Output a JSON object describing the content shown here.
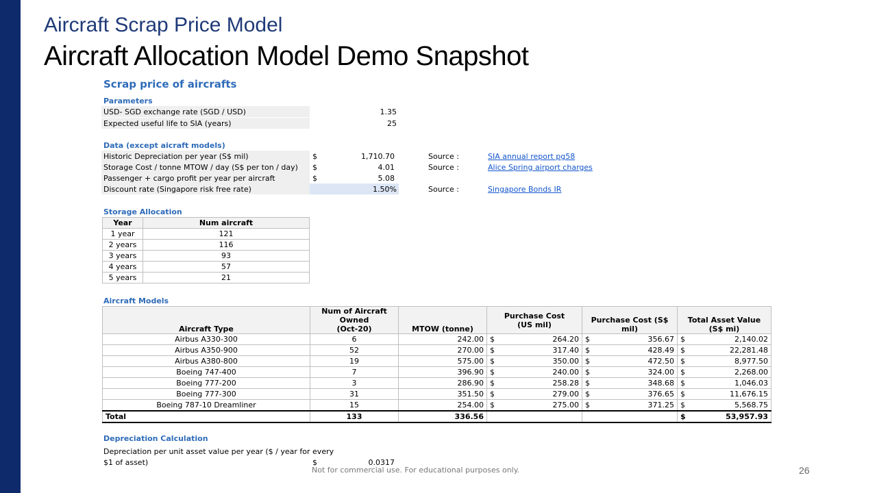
{
  "slide": {
    "title_top": "Aircraft Scrap Price Model",
    "title_main": "Aircraft Allocation Model Demo Snapshot",
    "footer": "Not for commercial use. For educational purposes only.",
    "page_number": "26"
  },
  "sheet": {
    "heading": "Scrap price of aircrafts",
    "parameters": {
      "title": "Parameters",
      "rows": [
        {
          "label": "USD- SGD exchange rate (SGD / USD)",
          "value": "1.35"
        },
        {
          "label": "Expected useful life to SIA (years)",
          "value": "25"
        }
      ]
    },
    "data": {
      "title": "Data (except aicraft models)",
      "rows": [
        {
          "label": "Historic Depreciation per year (S$ mil)",
          "currency": "$",
          "value": "1,710.70",
          "source_label": "Source :",
          "source_link": "SIA annual report pg58"
        },
        {
          "label": "Storage Cost / tonne MTOW / day (S$ per ton / day)",
          "currency": "$",
          "value": "4.01",
          "source_label": "Source :",
          "source_link": "Alice Spring airport charges"
        },
        {
          "label": "Passenger + cargo profit per year per aircraft",
          "currency": "$",
          "value": "5.08",
          "source_label": "",
          "source_link": ""
        },
        {
          "label": "Discount rate (Singapore risk free rate)",
          "currency": "",
          "value": "1.50%",
          "source_label": "Source :",
          "source_link": "Singapore Bonds IR"
        }
      ]
    },
    "storage": {
      "title": "Storage Allocation",
      "headers": [
        "Year",
        "Num aircraft"
      ],
      "rows": [
        [
          "1 year",
          "121"
        ],
        [
          "2 years",
          "116"
        ],
        [
          "3 years",
          "93"
        ],
        [
          "4 years",
          "57"
        ],
        [
          "5 years",
          "21"
        ]
      ]
    },
    "models": {
      "title": "Aircraft Models",
      "headers": {
        "type": "Aircraft Type",
        "owned_l1": "Num of Aircraft Owned",
        "owned_l2": "(Oct-20)",
        "mtow": "MTOW (tonne)",
        "cost_l1": "Purchase Cost",
        "cost_l2": "(US mil)",
        "cost_sgd": "Purchase Cost (S$ mil)",
        "asset": "Total Asset Value (S$ mi)"
      },
      "rows": [
        {
          "type": "Airbus A330-300",
          "owned": "6",
          "mtow": "242.00",
          "cost_us": "264.20",
          "cost_sgd": "356.67",
          "asset": "2,140.02"
        },
        {
          "type": "Airbus A350-900",
          "owned": "52",
          "mtow": "270.00",
          "cost_us": "317.40",
          "cost_sgd": "428.49",
          "asset": "22,281.48"
        },
        {
          "type": "Airbus A380-800",
          "owned": "19",
          "mtow": "575.00",
          "cost_us": "350.00",
          "cost_sgd": "472.50",
          "asset": "8,977.50"
        },
        {
          "type": "Boeing 747-400",
          "owned": "7",
          "mtow": "396.90",
          "cost_us": "240.00",
          "cost_sgd": "324.00",
          "asset": "2,268.00"
        },
        {
          "type": "Boeing 777-200",
          "owned": "3",
          "mtow": "286.90",
          "cost_us": "258.28",
          "cost_sgd": "348.68",
          "asset": "1,046.03"
        },
        {
          "type": "Boeing 777-300",
          "owned": "31",
          "mtow": "351.50",
          "cost_us": "279.00",
          "cost_sgd": "376.65",
          "asset": "11,676.15"
        },
        {
          "type": "Boeing 787-10 Dreamliner",
          "owned": "15",
          "mtow": "254.00",
          "cost_us": "275.00",
          "cost_sgd": "371.25",
          "asset": "5,568.75"
        }
      ],
      "total": {
        "label": "Total",
        "owned": "133",
        "mtow": "336.56",
        "currency": "$",
        "asset": "53,957.93"
      },
      "currency": "$"
    },
    "depreciation": {
      "title": "Depreciation Calculation",
      "label_l1": "Depreciation per unit asset value per year ($ / year for every",
      "label_l2": "$1 of asset)",
      "currency": "$",
      "value": "0.0317"
    }
  },
  "colors": {
    "leftbar": "#0e2a6b",
    "heading": "#2e6bb8",
    "title_top": "#1f3a78"
  }
}
